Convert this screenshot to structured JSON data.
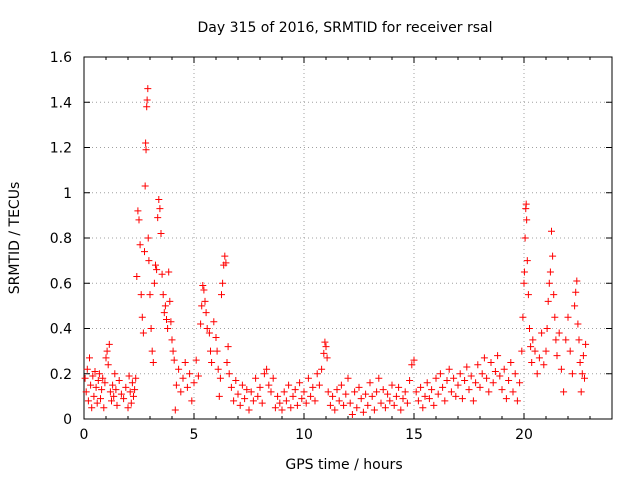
{
  "chart_data": {
    "type": "scatter",
    "title": "Day 315 of 2016, SRMTID for receiver rsal",
    "xlabel": "GPS time / hours",
    "ylabel": "SRMTID / TECUs",
    "xlim": [
      0,
      24
    ],
    "ylim": [
      0,
      1.6
    ],
    "xticks": [
      0,
      5,
      10,
      15,
      20
    ],
    "yticks": [
      0,
      0.2,
      0.4,
      0.6,
      0.8,
      1,
      1.2,
      1.4,
      1.6
    ],
    "xtick_labels": [
      "0",
      "5",
      "10",
      "15",
      "20"
    ],
    "ytick_labels": [
      "0",
      "0.2",
      "0.4",
      "0.6",
      "0.8",
      "1",
      "1.2",
      "1.4",
      "1.6"
    ],
    "grid": true,
    "marker": "+",
    "color": "#ff0000",
    "series": [
      {
        "name": "SRMTID",
        "points": [
          [
            0.05,
            0.18
          ],
          [
            0.1,
            0.12
          ],
          [
            0.15,
            0.22
          ],
          [
            0.2,
            0.08
          ],
          [
            0.25,
            0.27
          ],
          [
            0.3,
            0.15
          ],
          [
            0.35,
            0.05
          ],
          [
            0.4,
            0.19
          ],
          [
            0.45,
            0.1
          ],
          [
            0.5,
            0.21
          ],
          [
            0.55,
            0.14
          ],
          [
            0.6,
            0.07
          ],
          [
            0.65,
            0.17
          ],
          [
            0.7,
            0.2
          ],
          [
            0.75,
            0.09
          ],
          [
            0.8,
            0.13
          ],
          [
            0.85,
            0.18
          ],
          [
            0.9,
            0.05
          ],
          [
            0.95,
            0.16
          ],
          [
            1.0,
            0.27
          ],
          [
            1.05,
            0.3
          ],
          [
            1.1,
            0.24
          ],
          [
            1.15,
            0.33
          ],
          [
            1.2,
            0.12
          ],
          [
            1.25,
            0.08
          ],
          [
            1.3,
            0.15
          ],
          [
            1.35,
            0.1
          ],
          [
            1.4,
            0.2
          ],
          [
            1.45,
            0.13
          ],
          [
            1.5,
            0.06
          ],
          [
            1.6,
            0.17
          ],
          [
            1.7,
            0.11
          ],
          [
            1.8,
            0.09
          ],
          [
            1.9,
            0.14
          ],
          [
            2.0,
            0.05
          ],
          [
            2.05,
            0.19
          ],
          [
            2.1,
            0.12
          ],
          [
            2.15,
            0.07
          ],
          [
            2.2,
            0.16
          ],
          [
            2.25,
            0.1
          ],
          [
            2.3,
            0.13
          ],
          [
            2.35,
            0.18
          ],
          [
            2.4,
            0.63
          ],
          [
            2.45,
            0.92
          ],
          [
            2.5,
            0.88
          ],
          [
            2.55,
            0.77
          ],
          [
            2.6,
            0.55
          ],
          [
            2.65,
            0.45
          ],
          [
            2.7,
            0.38
          ],
          [
            2.75,
            0.74
          ],
          [
            2.78,
            1.03
          ],
          [
            2.8,
            1.22
          ],
          [
            2.82,
            1.19
          ],
          [
            2.85,
            1.38
          ],
          [
            2.87,
            1.41
          ],
          [
            2.9,
            1.46
          ],
          [
            2.92,
            0.8
          ],
          [
            2.95,
            0.7
          ],
          [
            3.0,
            0.55
          ],
          [
            3.05,
            0.4
          ],
          [
            3.1,
            0.3
          ],
          [
            3.15,
            0.25
          ],
          [
            3.2,
            0.6
          ],
          [
            3.25,
            0.68
          ],
          [
            3.3,
            0.66
          ],
          [
            3.35,
            0.89
          ],
          [
            3.4,
            0.97
          ],
          [
            3.45,
            0.93
          ],
          [
            3.5,
            0.82
          ],
          [
            3.55,
            0.64
          ],
          [
            3.6,
            0.55
          ],
          [
            3.65,
            0.47
          ],
          [
            3.7,
            0.5
          ],
          [
            3.75,
            0.44
          ],
          [
            3.8,
            0.4
          ],
          [
            3.85,
            0.65
          ],
          [
            3.9,
            0.52
          ],
          [
            3.95,
            0.43
          ],
          [
            4.0,
            0.35
          ],
          [
            4.05,
            0.3
          ],
          [
            4.1,
            0.26
          ],
          [
            4.15,
            0.04
          ],
          [
            4.2,
            0.15
          ],
          [
            4.3,
            0.22
          ],
          [
            4.4,
            0.12
          ],
          [
            4.5,
            0.18
          ],
          [
            4.6,
            0.25
          ],
          [
            4.7,
            0.14
          ],
          [
            4.8,
            0.2
          ],
          [
            4.9,
            0.08
          ],
          [
            5.0,
            0.16
          ],
          [
            5.1,
            0.26
          ],
          [
            5.2,
            0.19
          ],
          [
            5.3,
            0.42
          ],
          [
            5.35,
            0.5
          ],
          [
            5.4,
            0.59
          ],
          [
            5.45,
            0.57
          ],
          [
            5.5,
            0.52
          ],
          [
            5.55,
            0.47
          ],
          [
            5.6,
            0.4
          ],
          [
            5.7,
            0.38
          ],
          [
            5.75,
            0.3
          ],
          [
            5.8,
            0.25
          ],
          [
            5.9,
            0.43
          ],
          [
            6.0,
            0.36
          ],
          [
            6.05,
            0.3
          ],
          [
            6.1,
            0.22
          ],
          [
            6.15,
            0.1
          ],
          [
            6.2,
            0.18
          ],
          [
            6.25,
            0.55
          ],
          [
            6.3,
            0.6
          ],
          [
            6.35,
            0.68
          ],
          [
            6.4,
            0.72
          ],
          [
            6.45,
            0.69
          ],
          [
            6.5,
            0.25
          ],
          [
            6.55,
            0.32
          ],
          [
            6.6,
            0.2
          ],
          [
            6.7,
            0.14
          ],
          [
            6.8,
            0.08
          ],
          [
            6.9,
            0.17
          ],
          [
            7.0,
            0.11
          ],
          [
            7.1,
            0.06
          ],
          [
            7.2,
            0.15
          ],
          [
            7.3,
            0.09
          ],
          [
            7.4,
            0.13
          ],
          [
            7.5,
            0.04
          ],
          [
            7.6,
            0.12
          ],
          [
            7.7,
            0.08
          ],
          [
            7.8,
            0.18
          ],
          [
            7.9,
            0.1
          ],
          [
            8.0,
            0.14
          ],
          [
            8.1,
            0.07
          ],
          [
            8.2,
            0.2
          ],
          [
            8.3,
            0.22
          ],
          [
            8.4,
            0.15
          ],
          [
            8.5,
            0.12
          ],
          [
            8.6,
            0.18
          ],
          [
            8.7,
            0.05
          ],
          [
            8.8,
            0.1
          ],
          [
            8.9,
            0.07
          ],
          [
            9.0,
            0.04
          ],
          [
            9.1,
            0.12
          ],
          [
            9.2,
            0.08
          ],
          [
            9.3,
            0.15
          ],
          [
            9.4,
            0.05
          ],
          [
            9.5,
            0.1
          ],
          [
            9.6,
            0.13
          ],
          [
            9.7,
            0.06
          ],
          [
            9.8,
            0.16
          ],
          [
            9.9,
            0.09
          ],
          [
            10.0,
            0.12
          ],
          [
            10.1,
            0.07
          ],
          [
            10.2,
            0.18
          ],
          [
            10.3,
            0.1
          ],
          [
            10.4,
            0.14
          ],
          [
            10.5,
            0.08
          ],
          [
            10.6,
            0.2
          ],
          [
            10.7,
            0.15
          ],
          [
            10.8,
            0.22
          ],
          [
            10.9,
            0.29
          ],
          [
            10.95,
            0.34
          ],
          [
            11.0,
            0.32
          ],
          [
            11.05,
            0.27
          ],
          [
            11.1,
            0.12
          ],
          [
            11.2,
            0.06
          ],
          [
            11.3,
            0.1
          ],
          [
            11.4,
            0.04
          ],
          [
            11.5,
            0.13
          ],
          [
            11.6,
            0.08
          ],
          [
            11.7,
            0.15
          ],
          [
            11.8,
            0.06
          ],
          [
            11.9,
            0.11
          ],
          [
            12.0,
            0.18
          ],
          [
            12.1,
            0.07
          ],
          [
            12.2,
            0.02
          ],
          [
            12.3,
            0.12
          ],
          [
            12.4,
            0.05
          ],
          [
            12.5,
            0.14
          ],
          [
            12.6,
            0.09
          ],
          [
            12.7,
            0.03
          ],
          [
            12.8,
            0.11
          ],
          [
            12.9,
            0.06
          ],
          [
            13.0,
            0.16
          ],
          [
            13.1,
            0.1
          ],
          [
            13.2,
            0.04
          ],
          [
            13.3,
            0.12
          ],
          [
            13.4,
            0.18
          ],
          [
            13.5,
            0.07
          ],
          [
            13.6,
            0.13
          ],
          [
            13.7,
            0.05
          ],
          [
            13.8,
            0.11
          ],
          [
            13.9,
            0.08
          ],
          [
            14.0,
            0.15
          ],
          [
            14.1,
            0.06
          ],
          [
            14.2,
            0.1
          ],
          [
            14.3,
            0.14
          ],
          [
            14.4,
            0.04
          ],
          [
            14.5,
            0.09
          ],
          [
            14.6,
            0.12
          ],
          [
            14.7,
            0.07
          ],
          [
            14.8,
            0.17
          ],
          [
            14.9,
            0.24
          ],
          [
            15.0,
            0.26
          ],
          [
            15.1,
            0.12
          ],
          [
            15.2,
            0.08
          ],
          [
            15.3,
            0.14
          ],
          [
            15.4,
            0.05
          ],
          [
            15.5,
            0.1
          ],
          [
            15.6,
            0.16
          ],
          [
            15.7,
            0.09
          ],
          [
            15.8,
            0.13
          ],
          [
            15.9,
            0.06
          ],
          [
            16.0,
            0.18
          ],
          [
            16.1,
            0.11
          ],
          [
            16.2,
            0.2
          ],
          [
            16.3,
            0.14
          ],
          [
            16.4,
            0.08
          ],
          [
            16.5,
            0.17
          ],
          [
            16.6,
            0.22
          ],
          [
            16.7,
            0.12
          ],
          [
            16.8,
            0.18
          ],
          [
            16.9,
            0.1
          ],
          [
            17.0,
            0.15
          ],
          [
            17.1,
            0.2
          ],
          [
            17.2,
            0.09
          ],
          [
            17.3,
            0.17
          ],
          [
            17.4,
            0.23
          ],
          [
            17.5,
            0.13
          ],
          [
            17.6,
            0.19
          ],
          [
            17.7,
            0.08
          ],
          [
            17.8,
            0.16
          ],
          [
            17.9,
            0.24
          ],
          [
            18.0,
            0.14
          ],
          [
            18.1,
            0.2
          ],
          [
            18.2,
            0.27
          ],
          [
            18.3,
            0.18
          ],
          [
            18.4,
            0.12
          ],
          [
            18.5,
            0.25
          ],
          [
            18.6,
            0.16
          ],
          [
            18.7,
            0.21
          ],
          [
            18.8,
            0.28
          ],
          [
            18.9,
            0.19
          ],
          [
            19.0,
            0.13
          ],
          [
            19.1,
            0.22
          ],
          [
            19.2,
            0.09
          ],
          [
            19.3,
            0.17
          ],
          [
            19.4,
            0.25
          ],
          [
            19.5,
            0.12
          ],
          [
            19.6,
            0.2
          ],
          [
            19.7,
            0.08
          ],
          [
            19.8,
            0.16
          ],
          [
            19.9,
            0.3
          ],
          [
            19.95,
            0.45
          ],
          [
            20.0,
            0.6
          ],
          [
            20.02,
            0.65
          ],
          [
            20.05,
            0.8
          ],
          [
            20.08,
            0.93
          ],
          [
            20.1,
            0.95
          ],
          [
            20.12,
            0.88
          ],
          [
            20.15,
            0.7
          ],
          [
            20.2,
            0.55
          ],
          [
            20.25,
            0.4
          ],
          [
            20.3,
            0.32
          ],
          [
            20.35,
            0.25
          ],
          [
            20.4,
            0.35
          ],
          [
            20.5,
            0.3
          ],
          [
            20.6,
            0.2
          ],
          [
            20.7,
            0.27
          ],
          [
            20.8,
            0.38
          ],
          [
            20.9,
            0.24
          ],
          [
            21.0,
            0.3
          ],
          [
            21.05,
            0.4
          ],
          [
            21.1,
            0.52
          ],
          [
            21.15,
            0.6
          ],
          [
            21.2,
            0.65
          ],
          [
            21.25,
            0.83
          ],
          [
            21.3,
            0.72
          ],
          [
            21.35,
            0.55
          ],
          [
            21.4,
            0.45
          ],
          [
            21.45,
            0.35
          ],
          [
            21.5,
            0.28
          ],
          [
            21.6,
            0.38
          ],
          [
            21.7,
            0.22
          ],
          [
            21.8,
            0.12
          ],
          [
            21.9,
            0.35
          ],
          [
            22.0,
            0.45
          ],
          [
            22.1,
            0.3
          ],
          [
            22.2,
            0.2
          ],
          [
            22.3,
            0.5
          ],
          [
            22.35,
            0.56
          ],
          [
            22.4,
            0.61
          ],
          [
            22.45,
            0.42
          ],
          [
            22.5,
            0.35
          ],
          [
            22.55,
            0.25
          ],
          [
            22.6,
            0.12
          ],
          [
            22.65,
            0.2
          ],
          [
            22.7,
            0.28
          ],
          [
            22.75,
            0.18
          ],
          [
            22.8,
            0.33
          ]
        ]
      }
    ]
  }
}
